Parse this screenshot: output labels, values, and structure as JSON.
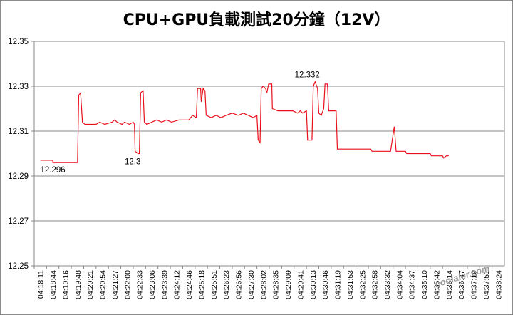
{
  "chart_data": {
    "type": "line",
    "title": "CPU+GPU負載測試20分鐘（12V）",
    "xlabel": "",
    "ylabel": "",
    "ylim": [
      12.25,
      12.35
    ],
    "y_ticks": [
      "12.35",
      "12.33",
      "12.31",
      "12.29",
      "12.27",
      "12.25"
    ],
    "x_ticks": [
      "04:18:11",
      "04:18:44",
      "04:19:16",
      "04:19:48",
      "04:20:21",
      "04:20:54",
      "04:21:27",
      "04:22:00",
      "04:22:33",
      "04:23:06",
      "04:23:39",
      "04:24:12",
      "04:24:46",
      "04:25:18",
      "04:25:51",
      "04:26:23",
      "04:26:56",
      "04:27:30",
      "04:28:02",
      "04:28:35",
      "04:29:09",
      "04:29:41",
      "04:30:13",
      "04:30:46",
      "04:31:19",
      "04:31:53",
      "04:32:25",
      "04:32:58",
      "04:33:32",
      "04:34:04",
      "04:34:37",
      "04:35:10",
      "04:35:42",
      "04:36:14",
      "04:36:47",
      "04:37:19",
      "04:37:51",
      "04:38:24"
    ],
    "grid": "horizontal",
    "legend": "none",
    "line_color": "#e8101c",
    "data_labels": [
      {
        "text": "12.296",
        "x": "04:18:44",
        "y": 12.296
      },
      {
        "text": "12.3",
        "x": "04:22:00",
        "y": 12.3
      },
      {
        "text": "12.332",
        "x": "04:31:53",
        "y": 12.332
      }
    ],
    "series": [
      {
        "values": [
          [
            0,
            12.297
          ],
          [
            1.0,
            12.297
          ],
          [
            1.0,
            12.296
          ],
          [
            3.0,
            12.296
          ],
          [
            3.1,
            12.326
          ],
          [
            3.25,
            12.327
          ],
          [
            3.4,
            12.314
          ],
          [
            3.6,
            12.313
          ],
          [
            4.5,
            12.313
          ],
          [
            4.8,
            12.314
          ],
          [
            5.2,
            12.313
          ],
          [
            5.8,
            12.314
          ],
          [
            6.0,
            12.315
          ],
          [
            6.2,
            12.314
          ],
          [
            6.6,
            12.313
          ],
          [
            6.8,
            12.314
          ],
          [
            7.2,
            12.313
          ],
          [
            7.5,
            12.314
          ],
          [
            7.6,
            12.313
          ],
          [
            7.65,
            12.301
          ],
          [
            7.9,
            12.3
          ],
          [
            8.0,
            12.3
          ],
          [
            8.1,
            12.327
          ],
          [
            8.3,
            12.328
          ],
          [
            8.4,
            12.314
          ],
          [
            8.6,
            12.313
          ],
          [
            9.0,
            12.314
          ],
          [
            9.4,
            12.315
          ],
          [
            9.8,
            12.314
          ],
          [
            10.2,
            12.315
          ],
          [
            10.6,
            12.314
          ],
          [
            11.2,
            12.315
          ],
          [
            12.0,
            12.315
          ],
          [
            12.3,
            12.317
          ],
          [
            12.6,
            12.316
          ],
          [
            12.7,
            12.329
          ],
          [
            12.95,
            12.329
          ],
          [
            13.0,
            12.323
          ],
          [
            13.15,
            12.329
          ],
          [
            13.3,
            12.328
          ],
          [
            13.4,
            12.317
          ],
          [
            13.8,
            12.316
          ],
          [
            14.2,
            12.317
          ],
          [
            14.6,
            12.316
          ],
          [
            15.0,
            12.317
          ],
          [
            15.5,
            12.318
          ],
          [
            16.0,
            12.317
          ],
          [
            16.4,
            12.318
          ],
          [
            16.8,
            12.317
          ],
          [
            17.2,
            12.316
          ],
          [
            17.5,
            12.317
          ],
          [
            17.6,
            12.306
          ],
          [
            17.75,
            12.305
          ],
          [
            17.85,
            12.329
          ],
          [
            18.0,
            12.33
          ],
          [
            18.2,
            12.329
          ],
          [
            18.3,
            12.327
          ],
          [
            18.45,
            12.331
          ],
          [
            18.7,
            12.331
          ],
          [
            18.75,
            12.32
          ],
          [
            19.2,
            12.319
          ],
          [
            19.8,
            12.319
          ],
          [
            20.4,
            12.319
          ],
          [
            20.8,
            12.318
          ],
          [
            21.0,
            12.319
          ],
          [
            21.2,
            12.318
          ],
          [
            21.5,
            12.319
          ],
          [
            21.6,
            12.306
          ],
          [
            21.95,
            12.306
          ],
          [
            22.05,
            12.33
          ],
          [
            22.2,
            12.332
          ],
          [
            22.4,
            12.329
          ],
          [
            22.5,
            12.318
          ],
          [
            22.7,
            12.317
          ],
          [
            22.9,
            12.32
          ],
          [
            23.0,
            12.331
          ],
          [
            23.2,
            12.331
          ],
          [
            23.3,
            12.319
          ],
          [
            23.9,
            12.319
          ],
          [
            24.0,
            12.302
          ],
          [
            26.7,
            12.302
          ],
          [
            26.8,
            12.301
          ],
          [
            28.3,
            12.301
          ],
          [
            28.6,
            12.312
          ],
          [
            28.75,
            12.301
          ],
          [
            29.5,
            12.301
          ],
          [
            29.6,
            12.3
          ],
          [
            31.5,
            12.3
          ],
          [
            31.6,
            12.299
          ],
          [
            32.5,
            12.299
          ],
          [
            32.6,
            12.298
          ],
          [
            32.8,
            12.299
          ],
          [
            33.0,
            12.299
          ]
        ]
      }
    ]
  },
  "watermark": "coolaler.com"
}
